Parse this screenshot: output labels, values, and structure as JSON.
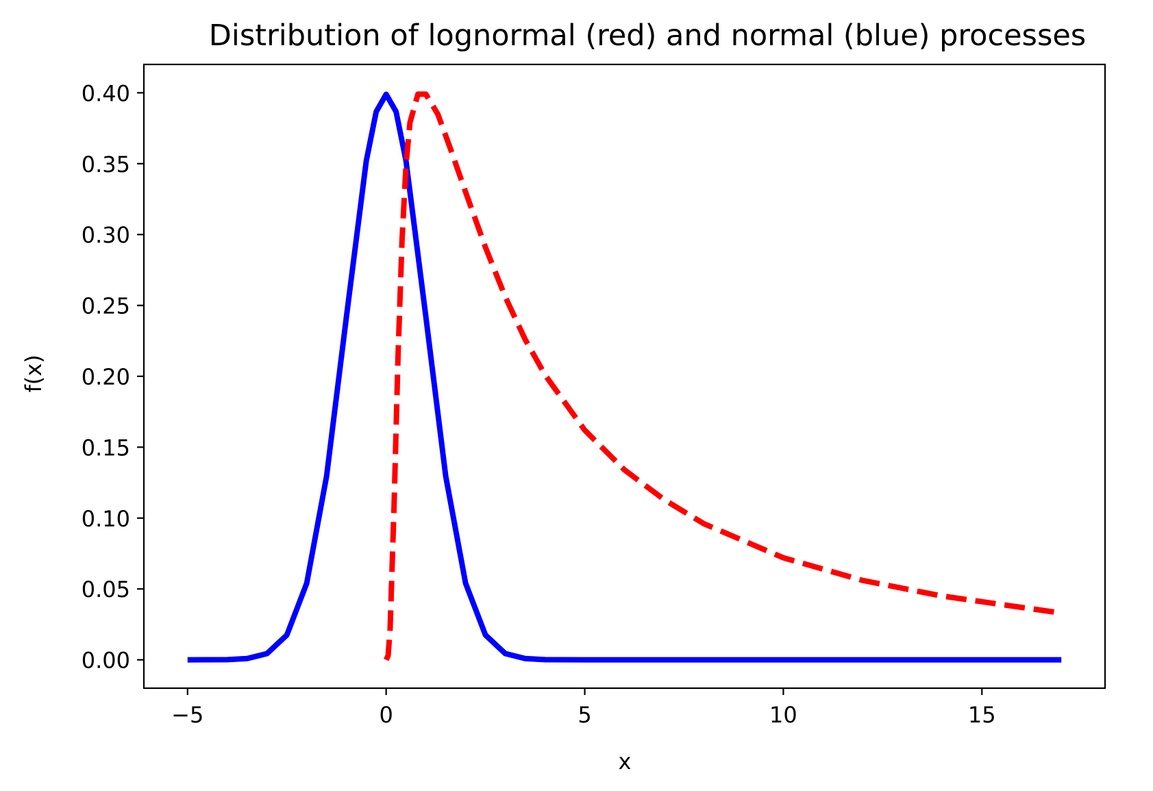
{
  "chart_data": {
    "type": "line",
    "title": "Distribution of lognormal (red) and normal (blue) processes",
    "xlabel": "x",
    "ylabel": "f(x)",
    "xlim": [
      -6.1,
      18.1
    ],
    "ylim": [
      -0.02,
      0.42
    ],
    "grid": false,
    "x_ticks": [
      -5,
      0,
      5,
      10,
      15
    ],
    "x_tick_labels": [
      "−5",
      "0",
      "5",
      "10",
      "15"
    ],
    "y_ticks": [
      0.0,
      0.05,
      0.1,
      0.15,
      0.2,
      0.25,
      0.3,
      0.35,
      0.4
    ],
    "y_tick_labels": [
      "0.00",
      "0.05",
      "0.10",
      "0.15",
      "0.20",
      "0.25",
      "0.30",
      "0.35",
      "0.40"
    ],
    "series": [
      {
        "color": "#0000ff",
        "style": "solid",
        "x": [
          -5.0,
          -4.0,
          -3.5,
          -3.0,
          -2.5,
          -2.0,
          -1.5,
          -1.0,
          -0.5,
          -0.25,
          0.0,
          0.25,
          0.5,
          1.0,
          1.5,
          2.0,
          2.5,
          3.0,
          3.5,
          4.0,
          5.0,
          8.0,
          12.0,
          17.0
        ],
        "y": [
          0.0,
          0.0001,
          0.0009,
          0.0044,
          0.0175,
          0.054,
          0.1295,
          0.242,
          0.352,
          0.3867,
          0.3989,
          0.3867,
          0.352,
          0.242,
          0.1295,
          0.054,
          0.0175,
          0.0044,
          0.0009,
          0.0001,
          0.0,
          0.0,
          0.0,
          0.0
        ]
      },
      {
        "color": "#ff0000",
        "style": "dashed",
        "x": [
          0.0,
          0.05,
          0.1,
          0.2,
          0.3,
          0.4,
          0.5,
          0.6,
          0.8,
          1.0,
          1.3,
          1.6,
          2.0,
          2.5,
          3.0,
          3.5,
          4.0,
          5.0,
          6.0,
          7.0,
          8.0,
          10.0,
          12.0,
          14.0,
          17.0
        ],
        "y": [
          0.0,
          0.003,
          0.022,
          0.109,
          0.215,
          0.296,
          0.349,
          0.379,
          0.399,
          0.399,
          0.385,
          0.362,
          0.33,
          0.291,
          0.256,
          0.226,
          0.201,
          0.162,
          0.134,
          0.113,
          0.096,
          0.072,
          0.056,
          0.045,
          0.033
        ]
      }
    ]
  }
}
